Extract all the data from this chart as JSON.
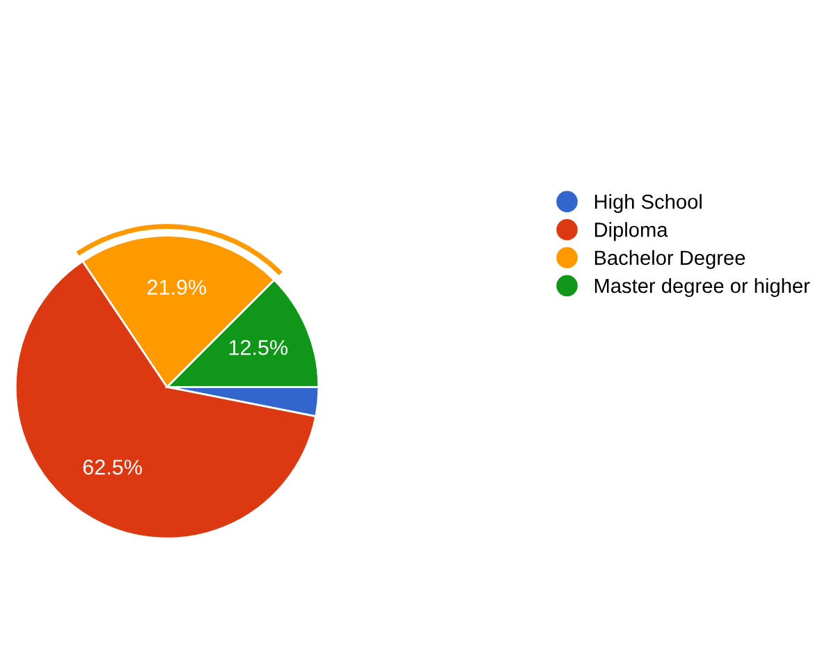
{
  "chart_data": {
    "type": "pie",
    "categories": [
      "High School",
      "Diploma",
      "Bachelor Degree",
      "Master degree or higher"
    ],
    "values": [
      3.1,
      62.5,
      21.9,
      12.5
    ],
    "colors": [
      "#3366cc",
      "#dc3912",
      "#ff9900",
      "#109618"
    ],
    "value_labels": [
      null,
      "62.5%",
      "21.9%",
      "12.5%"
    ],
    "legend": "right"
  }
}
